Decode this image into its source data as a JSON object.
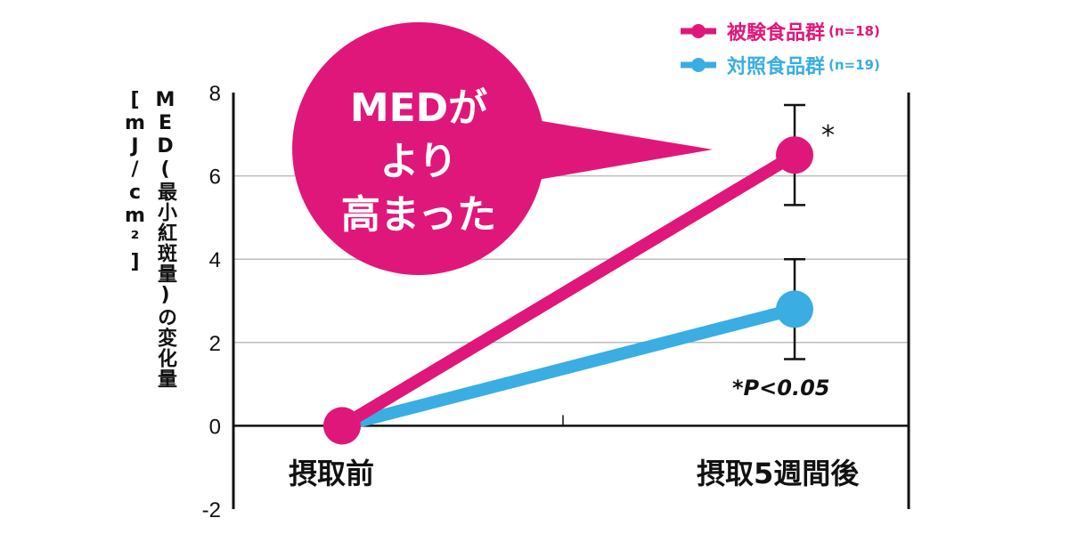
{
  "chart_data": {
    "type": "line",
    "categories": [
      "摂取前",
      "摂取5週間後"
    ],
    "series": [
      {
        "name": "被験食品群",
        "n_label": "(n=18)",
        "values": [
          0,
          6.5
        ],
        "error": [
          null,
          1.2
        ],
        "color": "#e0177a"
      },
      {
        "name": "対照食品群",
        "n_label": "(n=19)",
        "values": [
          0,
          2.8
        ],
        "error": [
          null,
          1.2
        ],
        "color": "#3aade3"
      }
    ],
    "ylabel": "MED(最小紅斑量)の変化量[mJ/cm²]",
    "ylim": [
      -2,
      8
    ],
    "yticks": [
      -2,
      0,
      2,
      4,
      6,
      8
    ],
    "grid": true,
    "legend": "top-right",
    "significance_marker": "*",
    "annotation": "*P<0.05",
    "callout": [
      "MEDが",
      "より",
      "高まった"
    ]
  }
}
